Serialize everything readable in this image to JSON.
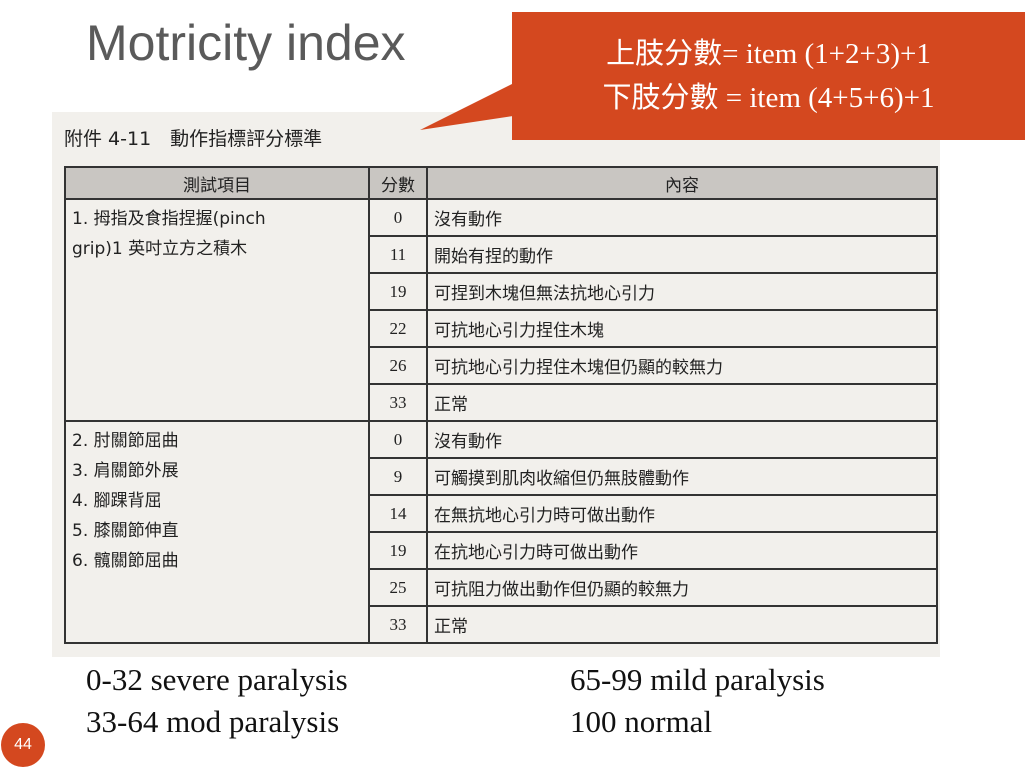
{
  "title": "Motricity index",
  "callout": [
    "上肢分數= item (1+2+3)+1",
    "下肢分數 = item (4+5+6)+1"
  ],
  "table": {
    "caption": "附件 4-11　動作指標評分標準",
    "header": [
      "測試項目",
      "分數",
      "內容"
    ],
    "groups": [
      {
        "item_lines": [
          "1. 拇指及食指捏握(pinch",
          "grip)1 英吋立方之積木"
        ],
        "rows": [
          [
            0,
            "沒有動作"
          ],
          [
            11,
            "開始有捏的動作"
          ],
          [
            19,
            "可捏到木塊但無法抗地心引力"
          ],
          [
            22,
            "可抗地心引力捏住木塊"
          ],
          [
            26,
            "可抗地心引力捏住木塊但仍顯的較無力"
          ],
          [
            33,
            "正常"
          ]
        ]
      },
      {
        "item_lines": [
          "2. 肘關節屈曲",
          "3. 肩關節外展",
          "4. 腳踝背屈",
          "5. 膝關節伸直",
          "6. 髖關節屈曲"
        ],
        "rows": [
          [
            0,
            "沒有動作"
          ],
          [
            9,
            "可觸摸到肌肉收縮但仍無肢體動作"
          ],
          [
            14,
            "在無抗地心引力時可做出動作"
          ],
          [
            19,
            "在抗地心引力時可做出動作"
          ],
          [
            25,
            "可抗阻力做出動作但仍顯的較無力"
          ],
          [
            33,
            "正常"
          ]
        ]
      }
    ]
  },
  "legend": [
    "0-32 severe paralysis",
    "65-99 mild paralysis",
    "33-64 mod paralysis",
    "100 normal"
  ],
  "page_number": 44
}
